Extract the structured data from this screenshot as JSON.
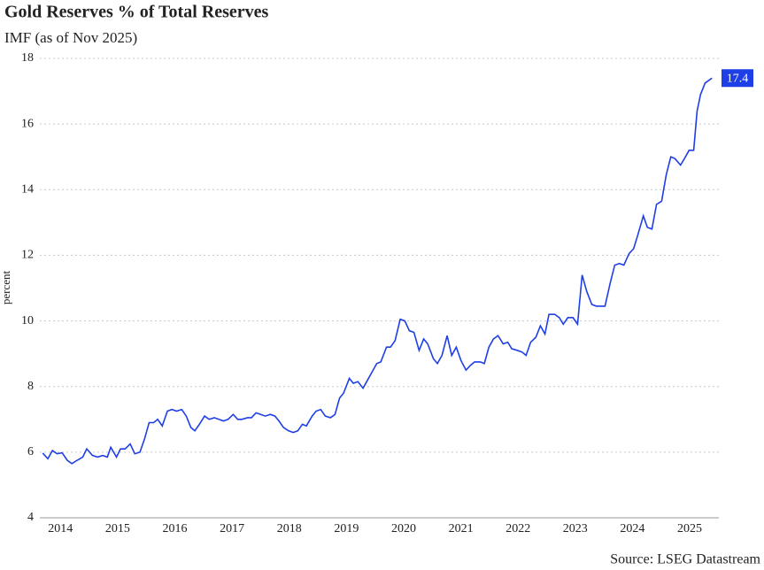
{
  "chart_data": {
    "type": "line",
    "title": "Gold Reserves % of Total Reserves",
    "subtitle": "IMF (as of Nov 2025)",
    "y_label": "percent",
    "source": "Source: LSEG Datastream",
    "xlim": [
      2014.14,
      2026.01
    ],
    "xticks": [
      {
        "value": 2014.5,
        "label": "2014"
      },
      {
        "value": 2015.5,
        "label": "2015"
      },
      {
        "value": 2016.5,
        "label": "2016"
      },
      {
        "value": 2017.5,
        "label": "2017"
      },
      {
        "value": 2018.5,
        "label": "2018"
      },
      {
        "value": 2019.5,
        "label": "2019"
      },
      {
        "value": 2020.5,
        "label": "2020"
      },
      {
        "value": 2021.5,
        "label": "2021"
      },
      {
        "value": 2022.5,
        "label": "2022"
      },
      {
        "value": 2023.5,
        "label": "2023"
      },
      {
        "value": 2024.5,
        "label": "2024"
      },
      {
        "value": 2025.5,
        "label": "2025"
      }
    ],
    "ylim": [
      4,
      18
    ],
    "yticks": [
      4,
      6,
      8,
      10,
      12,
      14,
      16,
      18
    ],
    "grid": true,
    "end_label": true,
    "x": [
      2014.19,
      2014.28,
      2014.36,
      2014.44,
      2014.53,
      2014.62,
      2014.7,
      2014.79,
      2014.89,
      2014.96,
      2015.06,
      2015.15,
      2015.24,
      2015.32,
      2015.38,
      2015.48,
      2015.55,
      2015.63,
      2015.72,
      2015.8,
      2015.89,
      2015.97,
      2016.05,
      2016.13,
      2016.2,
      2016.28,
      2016.37,
      2016.45,
      2016.53,
      2016.62,
      2016.7,
      2016.78,
      2016.85,
      2016.93,
      2017.02,
      2017.1,
      2017.19,
      2017.27,
      2017.35,
      2017.43,
      2017.52,
      2017.6,
      2017.67,
      2017.77,
      2017.84,
      2017.92,
      2018.0,
      2018.08,
      2018.17,
      2018.25,
      2018.32,
      2018.4,
      2018.49,
      2018.57,
      2018.65,
      2018.73,
      2018.8,
      2018.9,
      2018.97,
      2019.05,
      2019.13,
      2019.22,
      2019.3,
      2019.38,
      2019.45,
      2019.55,
      2019.62,
      2019.7,
      2019.79,
      2019.87,
      2019.95,
      2020.03,
      2020.1,
      2020.2,
      2020.27,
      2020.35,
      2020.44,
      2020.52,
      2020.6,
      2020.68,
      2020.77,
      2020.85,
      2020.92,
      2021.02,
      2021.09,
      2021.17,
      2021.26,
      2021.34,
      2021.42,
      2021.5,
      2021.59,
      2021.67,
      2021.74,
      2021.84,
      2021.91,
      2021.99,
      2022.07,
      2022.15,
      2022.24,
      2022.32,
      2022.39,
      2022.49,
      2022.57,
      2022.64,
      2022.72,
      2022.81,
      2022.89,
      2022.97,
      2023.04,
      2023.14,
      2023.22,
      2023.29,
      2023.37,
      2023.46,
      2023.54,
      2023.62,
      2023.7,
      2023.79,
      2023.87,
      2023.94,
      2024.02,
      2024.11,
      2024.19,
      2024.27,
      2024.35,
      2024.44,
      2024.52,
      2024.59,
      2024.69,
      2024.76,
      2024.84,
      2024.92,
      2025.01,
      2025.09,
      2025.17,
      2025.24,
      2025.34,
      2025.41,
      2025.49,
      2025.57,
      2025.63,
      2025.69,
      2025.77,
      2025.89
    ],
    "series": [
      {
        "name": "Gold Reserves % of Total Reserves",
        "color": "#1f3fe6",
        "values": [
          5.97,
          5.8,
          6.05,
          5.95,
          5.98,
          5.75,
          5.65,
          5.75,
          5.85,
          6.1,
          5.9,
          5.85,
          5.9,
          5.85,
          6.15,
          5.85,
          6.1,
          6.1,
          6.25,
          5.95,
          6.0,
          6.4,
          6.9,
          6.9,
          7.0,
          6.8,
          7.25,
          7.3,
          7.25,
          7.3,
          7.1,
          6.75,
          6.65,
          6.85,
          7.1,
          7.0,
          7.05,
          7.0,
          6.95,
          7.0,
          7.15,
          7.0,
          7.0,
          7.05,
          7.05,
          7.2,
          7.15,
          7.1,
          7.15,
          7.1,
          6.95,
          6.75,
          6.65,
          6.6,
          6.65,
          6.85,
          6.8,
          7.1,
          7.25,
          7.3,
          7.1,
          7.05,
          7.15,
          7.65,
          7.8,
          8.25,
          8.1,
          8.15,
          7.95,
          8.2,
          8.45,
          8.7,
          8.75,
          9.2,
          9.2,
          9.4,
          10.05,
          10.0,
          9.7,
          9.65,
          9.1,
          9.45,
          9.3,
          8.85,
          8.7,
          8.95,
          9.55,
          8.95,
          9.2,
          8.8,
          8.5,
          8.65,
          8.75,
          8.75,
          8.7,
          9.2,
          9.45,
          9.55,
          9.3,
          9.35,
          9.15,
          9.1,
          9.05,
          8.95,
          9.35,
          9.5,
          9.85,
          9.6,
          10.2,
          10.2,
          10.1,
          9.9,
          10.1,
          10.1,
          9.9,
          11.4,
          10.9,
          10.5,
          10.45,
          10.45,
          10.45,
          11.15,
          11.7,
          11.75,
          11.7,
          12.05,
          12.2,
          12.6,
          13.2,
          12.85,
          12.8,
          13.55,
          13.65,
          14.45,
          15.0,
          14.95,
          14.75,
          14.95,
          15.2,
          15.2,
          16.4,
          16.9,
          17.25,
          17.4
        ]
      }
    ]
  }
}
